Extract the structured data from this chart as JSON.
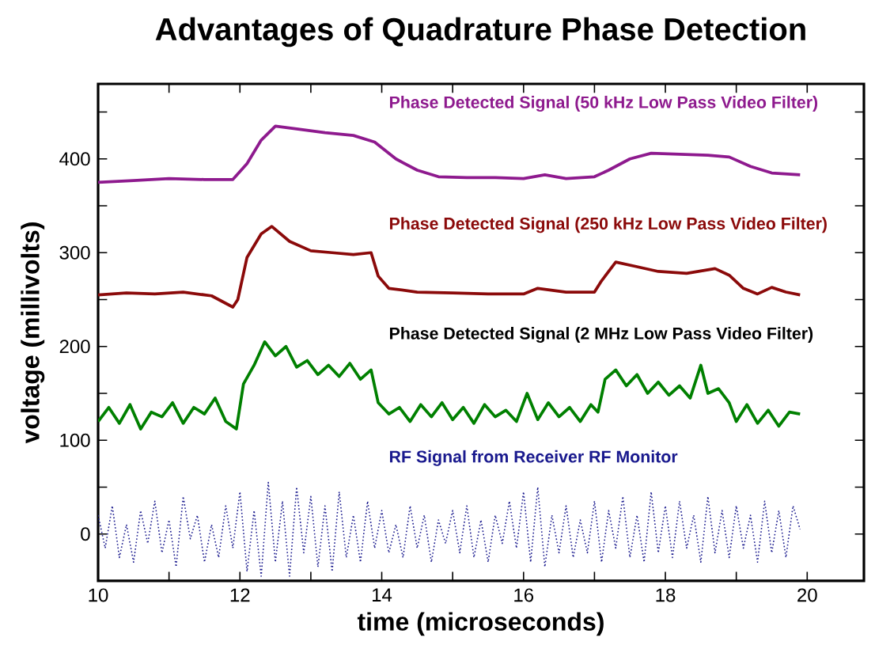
{
  "chart_data": {
    "type": "line",
    "title": "Advantages of Quadrature Phase Detection",
    "xlabel": "time (microseconds)",
    "ylabel": "voltage (millivolts)",
    "xlim": [
      10,
      20.8
    ],
    "ylim": [
      -50,
      480
    ],
    "xticks": [
      10,
      {
        "value": 11,
        "label": null
      },
      12,
      {
        "value": 13,
        "label": null
      },
      14,
      {
        "value": 15,
        "label": null
      },
      16,
      {
        "value": 17,
        "label": null
      },
      18,
      {
        "value": 19,
        "label": null
      },
      20
    ],
    "yticks": [
      0,
      {
        "value": 50,
        "label": null
      },
      100,
      {
        "value": 150,
        "label": null
      },
      200,
      {
        "value": 250,
        "label": null
      },
      300,
      {
        "value": 350,
        "label": null
      },
      400,
      {
        "value": 450,
        "label": null
      }
    ],
    "grid": false,
    "legend": false,
    "marker": "none",
    "series": [
      {
        "name": "Phase Detected Signal (50 kHz Low Pass Video Filter)",
        "color": "#8e1a8e",
        "line_style": "solid",
        "x": [
          10,
          10.5,
          11,
          11.5,
          11.9,
          12.1,
          12.3,
          12.5,
          12.8,
          13.2,
          13.6,
          13.9,
          14.2,
          14.5,
          14.8,
          15.2,
          15.6,
          16,
          16.3,
          16.6,
          17,
          17.2,
          17.5,
          17.8,
          18.2,
          18.6,
          18.9,
          19.2,
          19.5,
          19.9
        ],
        "values": [
          375,
          377,
          379,
          378,
          378,
          395,
          420,
          435,
          432,
          428,
          425,
          418,
          400,
          388,
          381,
          380,
          380,
          379,
          383,
          379,
          381,
          388,
          400,
          406,
          405,
          404,
          402,
          392,
          385,
          383
        ]
      },
      {
        "name": "Phase Detected Signal (250 kHz Low Pass Video Filter)",
        "color": "#8b0a0a",
        "line_style": "solid",
        "x": [
          10,
          10.4,
          10.8,
          11.2,
          11.6,
          11.9,
          11.97,
          12.1,
          12.3,
          12.45,
          12.7,
          13,
          13.3,
          13.6,
          13.85,
          13.95,
          14.1,
          14.5,
          15,
          15.5,
          16,
          16.2,
          16.6,
          17,
          17.1,
          17.3,
          17.6,
          17.9,
          18.3,
          18.7,
          18.9,
          19.1,
          19.3,
          19.5,
          19.7,
          19.9
        ],
        "values": [
          255,
          257,
          256,
          258,
          254,
          242,
          250,
          295,
          320,
          328,
          312,
          302,
          300,
          298,
          300,
          275,
          262,
          258,
          257,
          256,
          256,
          262,
          258,
          258,
          270,
          290,
          285,
          280,
          278,
          283,
          276,
          262,
          256,
          263,
          258,
          255
        ]
      },
      {
        "name": "Phase Detected Signal (2 MHz Low Pass Video Filter)",
        "color": "#008000",
        "line_style": "solid",
        "x": [
          10,
          10.15,
          10.3,
          10.45,
          10.6,
          10.75,
          10.9,
          11.05,
          11.2,
          11.35,
          11.5,
          11.65,
          11.8,
          11.95,
          12.05,
          12.2,
          12.35,
          12.5,
          12.65,
          12.8,
          12.95,
          13.1,
          13.25,
          13.4,
          13.55,
          13.7,
          13.85,
          13.95,
          14.1,
          14.25,
          14.4,
          14.55,
          14.7,
          14.85,
          15,
          15.15,
          15.3,
          15.45,
          15.6,
          15.75,
          15.9,
          16.05,
          16.2,
          16.35,
          16.5,
          16.65,
          16.8,
          16.95,
          17.05,
          17.15,
          17.3,
          17.45,
          17.6,
          17.75,
          17.9,
          18.05,
          18.2,
          18.35,
          18.5,
          18.6,
          18.75,
          18.9,
          19,
          19.15,
          19.3,
          19.45,
          19.6,
          19.75,
          19.9
        ],
        "values": [
          120,
          135,
          118,
          138,
          112,
          130,
          125,
          140,
          118,
          135,
          128,
          145,
          120,
          112,
          160,
          180,
          205,
          190,
          200,
          178,
          185,
          170,
          180,
          168,
          182,
          165,
          175,
          140,
          128,
          135,
          120,
          138,
          125,
          140,
          122,
          135,
          118,
          138,
          125,
          132,
          120,
          150,
          122,
          140,
          125,
          135,
          120,
          138,
          130,
          165,
          175,
          158,
          170,
          150,
          162,
          148,
          158,
          145,
          180,
          150,
          155,
          140,
          120,
          138,
          118,
          132,
          115,
          130,
          128
        ]
      },
      {
        "name": "RF Signal from Receiver RF Monitor",
        "color": "#1a1a8e",
        "line_style": "dotted",
        "x": [
          10,
          10.1,
          10.2,
          10.3,
          10.4,
          10.5,
          10.6,
          10.7,
          10.8,
          10.9,
          11,
          11.1,
          11.2,
          11.3,
          11.4,
          11.5,
          11.6,
          11.7,
          11.8,
          11.9,
          12,
          12.1,
          12.2,
          12.3,
          12.4,
          12.5,
          12.6,
          12.7,
          12.8,
          12.9,
          13,
          13.1,
          13.2,
          13.3,
          13.4,
          13.5,
          13.6,
          13.7,
          13.8,
          13.9,
          14,
          14.1,
          14.2,
          14.3,
          14.4,
          14.5,
          14.6,
          14.7,
          14.8,
          14.9,
          15,
          15.1,
          15.2,
          15.3,
          15.4,
          15.5,
          15.6,
          15.7,
          15.8,
          15.9,
          16,
          16.1,
          16.2,
          16.3,
          16.4,
          16.5,
          16.6,
          16.7,
          16.8,
          16.9,
          17,
          17.1,
          17.2,
          17.3,
          17.4,
          17.5,
          17.6,
          17.7,
          17.8,
          17.9,
          18,
          18.1,
          18.2,
          18.3,
          18.4,
          18.5,
          18.6,
          18.7,
          18.8,
          18.9,
          19,
          19.1,
          19.2,
          19.3,
          19.4,
          19.5,
          19.6,
          19.7,
          19.8,
          19.9
        ],
        "values": [
          20,
          -15,
          30,
          -25,
          10,
          -30,
          25,
          -10,
          35,
          -20,
          15,
          -35,
          40,
          -5,
          20,
          -30,
          10,
          -25,
          30,
          -15,
          45,
          -40,
          25,
          -45,
          55,
          -30,
          35,
          -45,
          50,
          -20,
          40,
          -35,
          30,
          -40,
          45,
          -25,
          20,
          -30,
          35,
          -15,
          25,
          -20,
          10,
          -25,
          30,
          -15,
          20,
          -30,
          15,
          -10,
          25,
          -20,
          30,
          -25,
          15,
          -30,
          20,
          -10,
          35,
          -15,
          45,
          -30,
          50,
          -35,
          20,
          -20,
          30,
          -25,
          15,
          -20,
          35,
          -30,
          25,
          -15,
          40,
          -25,
          20,
          -30,
          45,
          -20,
          30,
          -25,
          35,
          -15,
          20,
          -30,
          40,
          -20,
          25,
          -25,
          30,
          -15,
          20,
          -30,
          35,
          -20,
          25,
          -25,
          30,
          5
        ]
      }
    ]
  }
}
